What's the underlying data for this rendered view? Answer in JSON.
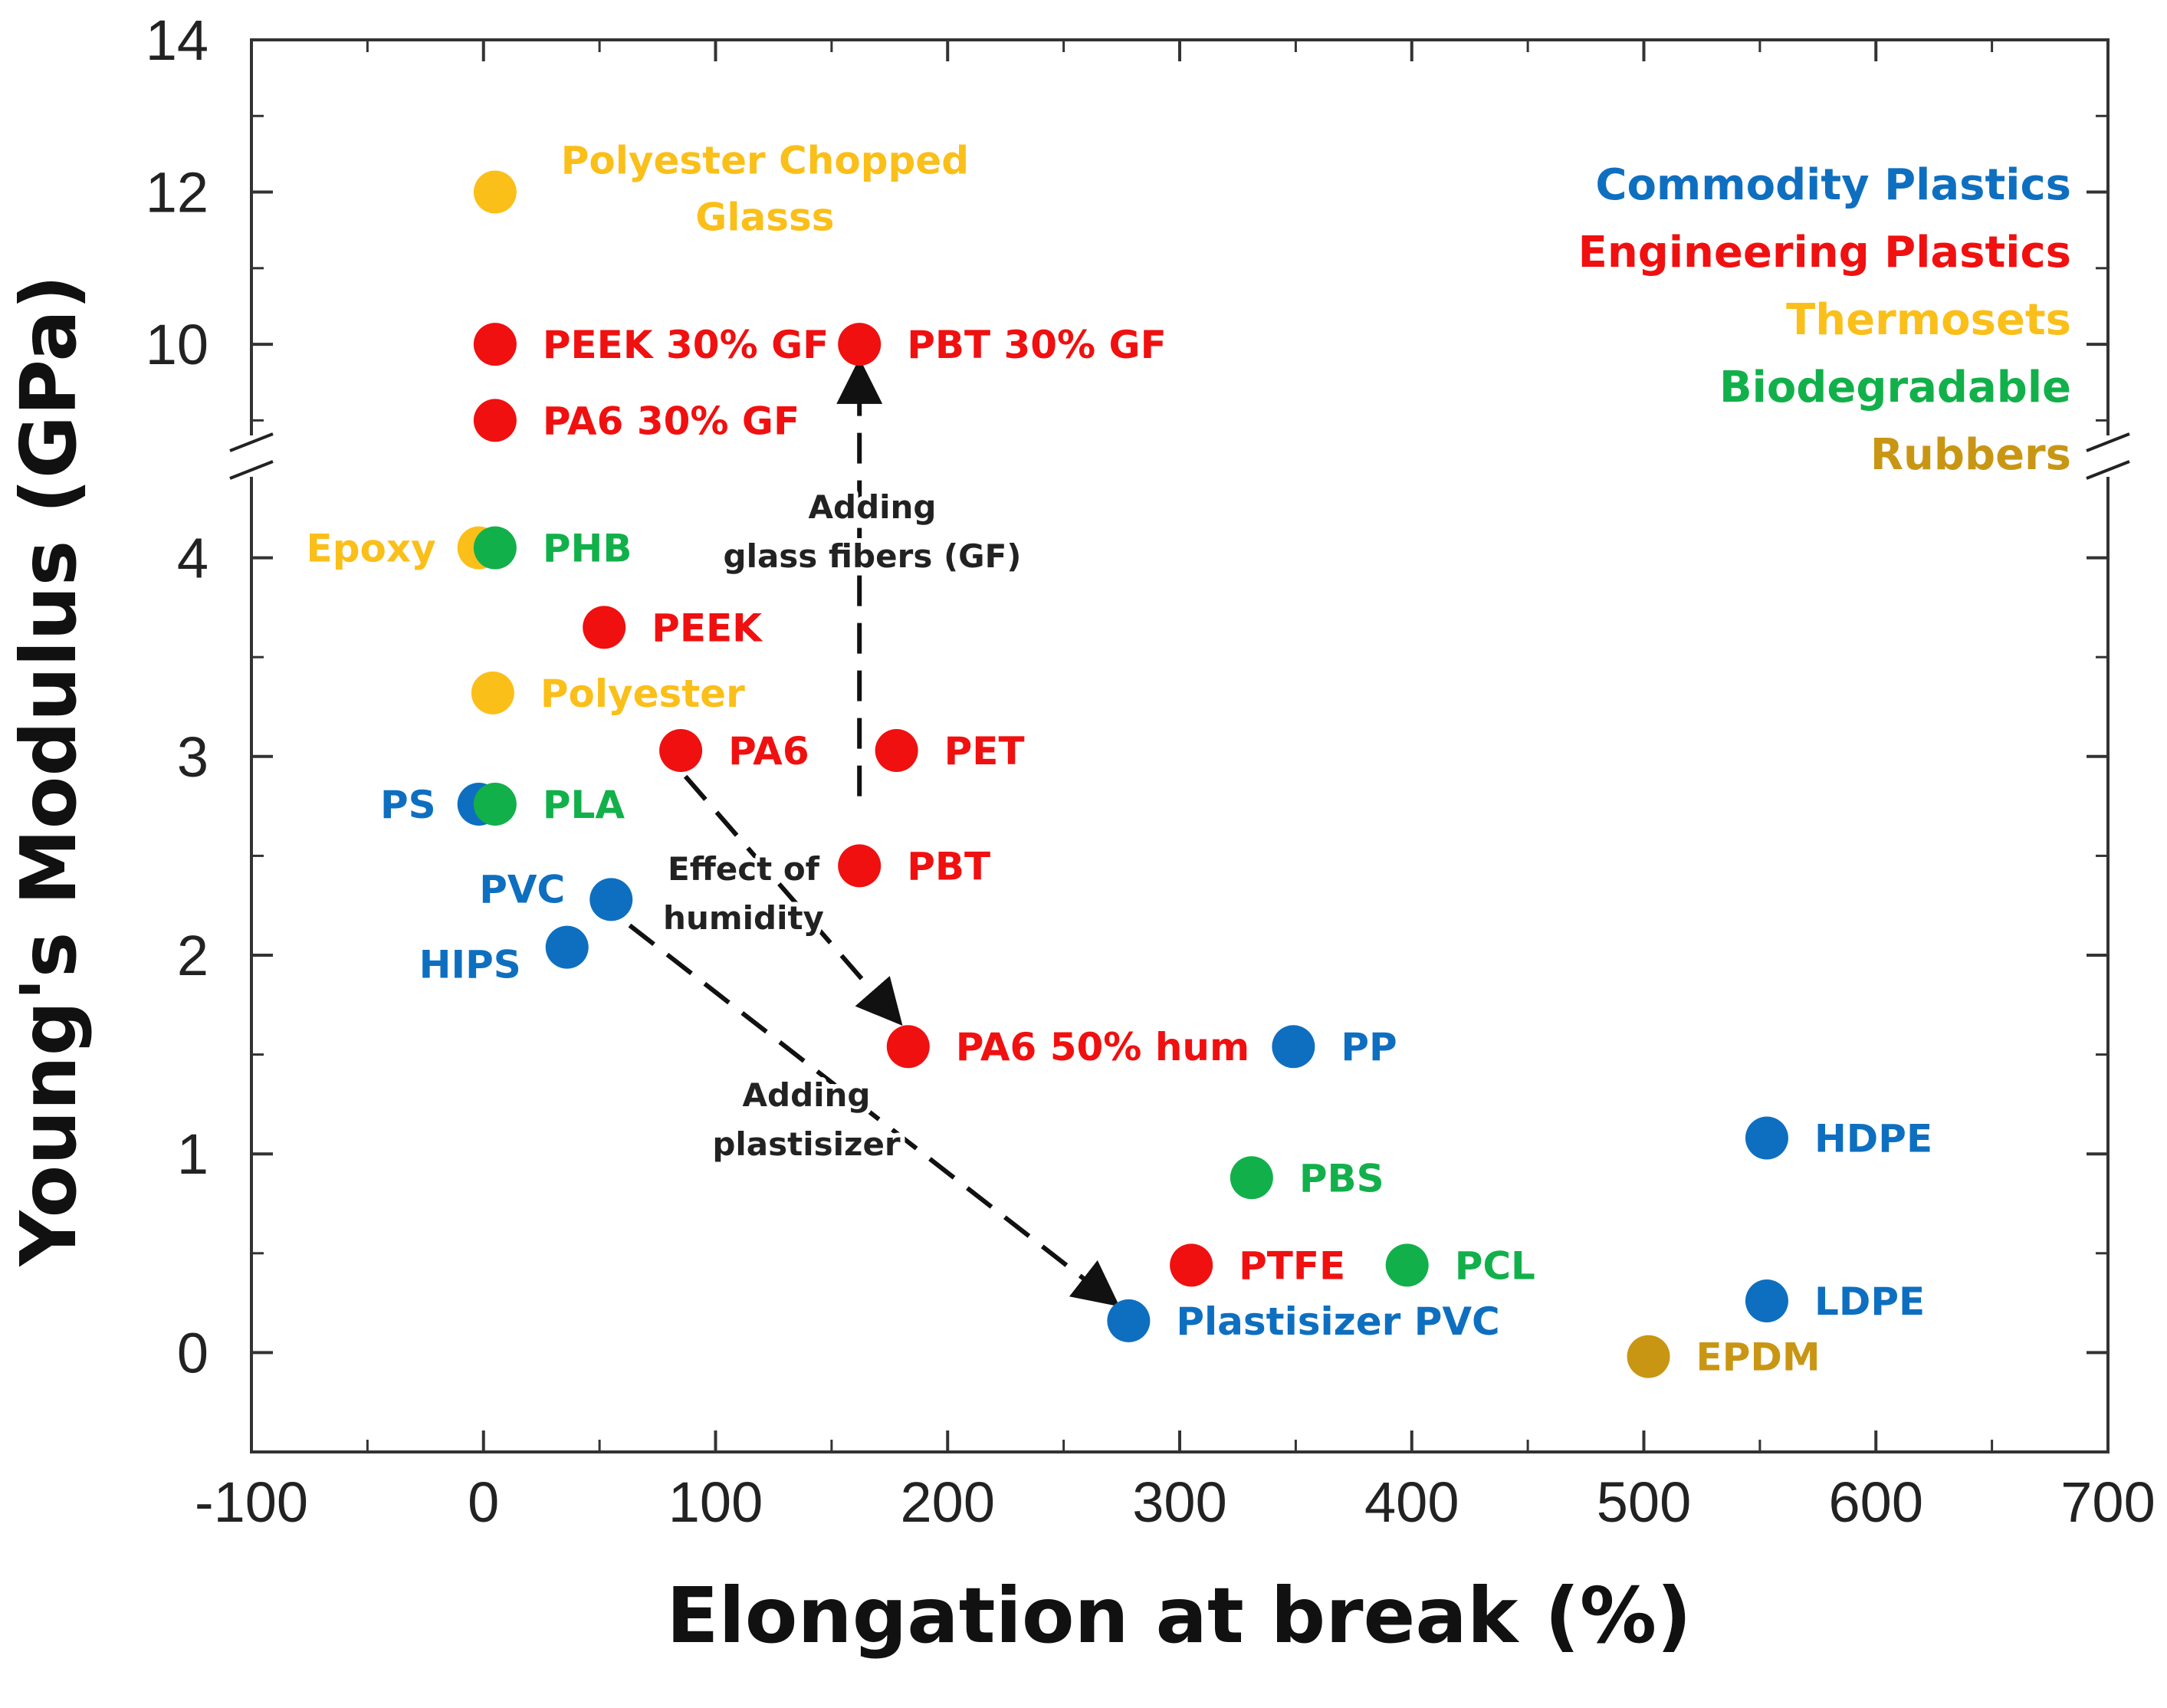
{
  "chart_data": {
    "type": "scatter",
    "title": "",
    "xlabel": "Elongation at break (%)",
    "ylabel": "Young's Modulus (GPa)",
    "xlim": [
      -100,
      700
    ],
    "ylim": [
      -0.5,
      14
    ],
    "y_axis_break": [
      4.5,
      8.5
    ],
    "x_ticks": [
      "-100",
      "0",
      "100",
      "200",
      "300",
      "400",
      "500",
      "600",
      "700"
    ],
    "y_ticks": [
      "0",
      "1",
      "2",
      "3",
      "4",
      "10",
      "12",
      "14"
    ],
    "grid": false,
    "legend_position": "top-right",
    "colors": {
      "commodity": "#0e6fc0",
      "engineering": "#f01010",
      "thermoset": "#fbbf1a",
      "biodegradable": "#12b04a",
      "rubber": "#c99614"
    },
    "legend": [
      {
        "label": "Commodity Plastics",
        "group": "commodity"
      },
      {
        "label": "Engineering Plastics",
        "group": "engineering"
      },
      {
        "label": "Thermosets",
        "group": "thermoset"
      },
      {
        "label": "Biodegradable",
        "group": "biodegradable"
      },
      {
        "label": "Rubbers",
        "group": "rubber"
      }
    ],
    "points": [
      {
        "label": "Polyester Chopped",
        "label2": "Glasss",
        "x": 5,
        "y": 12,
        "group": "thermoset",
        "label_side": "above"
      },
      {
        "label": "PEEK 30% GF",
        "x": 5,
        "y": 10,
        "group": "engineering",
        "label_side": "right"
      },
      {
        "label": "PBT 30% GF",
        "x": 162,
        "y": 10,
        "group": "engineering",
        "label_side": "right"
      },
      {
        "label": "PA6 30% GF",
        "x": 5,
        "y": 9,
        "group": "engineering",
        "label_side": "right"
      },
      {
        "label": "Epoxy",
        "x": -2,
        "y": 4.05,
        "group": "thermoset",
        "label_side": "left"
      },
      {
        "label": "PHB",
        "x": 5,
        "y": 4.05,
        "group": "biodegradable",
        "label_side": "right"
      },
      {
        "label": "PEEK",
        "x": 52,
        "y": 3.65,
        "group": "engineering",
        "label_side": "right"
      },
      {
        "label": "Polyester",
        "x": 4,
        "y": 3.32,
        "group": "thermoset",
        "label_side": "right"
      },
      {
        "label": "PA6",
        "x": 85,
        "y": 3.03,
        "group": "engineering",
        "label_side": "right"
      },
      {
        "label": "PET",
        "x": 178,
        "y": 3.03,
        "group": "engineering",
        "label_side": "right"
      },
      {
        "label": "PS",
        "x": -2,
        "y": 2.76,
        "group": "commodity",
        "label_side": "left"
      },
      {
        "label": "PLA",
        "x": 5,
        "y": 2.76,
        "group": "biodegradable",
        "label_side": "right"
      },
      {
        "label": "PBT",
        "x": 162,
        "y": 2.45,
        "group": "engineering",
        "label_side": "right"
      },
      {
        "label": "PVC",
        "x": 55,
        "y": 2.28,
        "group": "commodity",
        "label_side": "upper-left"
      },
      {
        "label": "HIPS",
        "x": 36,
        "y": 2.04,
        "group": "commodity",
        "label_side": "lower-left"
      },
      {
        "label": "PA6 50% hum",
        "x": 183,
        "y": 1.54,
        "group": "engineering",
        "label_side": "right"
      },
      {
        "label": "PP",
        "x": 349,
        "y": 1.54,
        "group": "commodity",
        "label_side": "right"
      },
      {
        "label": "HDPE",
        "x": 553,
        "y": 1.08,
        "group": "commodity",
        "label_side": "right"
      },
      {
        "label": "PBS",
        "x": 331,
        "y": 0.88,
        "group": "biodegradable",
        "label_side": "right"
      },
      {
        "label": "PTFE",
        "x": 305,
        "y": 0.44,
        "group": "engineering",
        "label_side": "right"
      },
      {
        "label": "PCL",
        "x": 398,
        "y": 0.44,
        "group": "biodegradable",
        "label_side": "right"
      },
      {
        "label": "LDPE",
        "x": 553,
        "y": 0.26,
        "group": "commodity",
        "label_side": "right"
      },
      {
        "label": "Plastisizer PVC",
        "x": 278,
        "y": 0.16,
        "group": "commodity",
        "label_side": "right"
      },
      {
        "label": "EPDM",
        "x": 502,
        "y": -0.02,
        "group": "rubber",
        "label_side": "right"
      }
    ],
    "annotations": [
      {
        "lines": [
          "Adding",
          "glass fibers (GF)"
        ],
        "from": [
          162,
          2.8
        ],
        "to": [
          162,
          9.7
        ]
      },
      {
        "lines": [
          "Effect of",
          "humidity"
        ],
        "from": [
          87,
          2.9
        ],
        "to": [
          178,
          1.68
        ]
      },
      {
        "lines": [
          "Adding",
          "plastisizer"
        ],
        "from": [
          63,
          2.15
        ],
        "to": [
          271,
          0.26
        ]
      }
    ]
  }
}
